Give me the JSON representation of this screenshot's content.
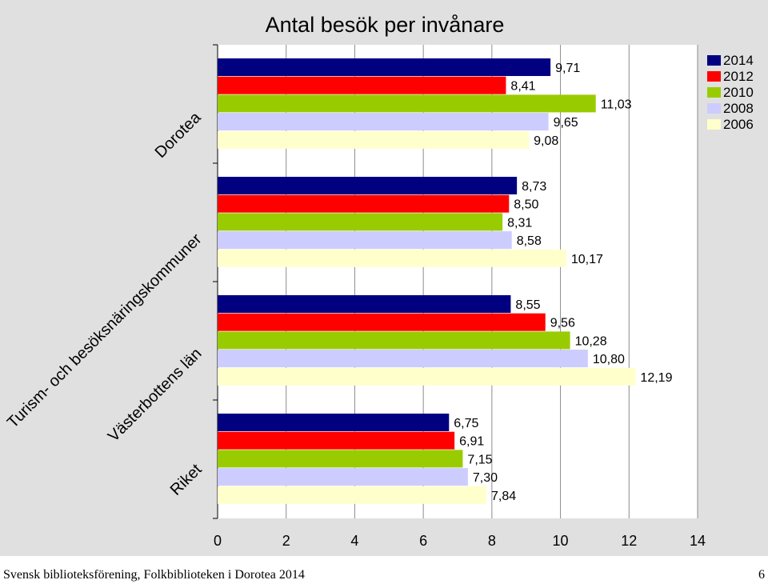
{
  "chart_data": {
    "type": "bar",
    "orientation": "horizontal",
    "title": "Antal besök per invånare",
    "categories": [
      "Dorotea",
      "Turism- och besöksnäringskommuner",
      "Västerbottens län",
      "Riket"
    ],
    "series": [
      {
        "name": "2014",
        "color": "#000080",
        "values": [
          9.71,
          8.73,
          8.55,
          6.75
        ]
      },
      {
        "name": "2012",
        "color": "#ff0000",
        "values": [
          8.41,
          8.5,
          9.56,
          6.91
        ]
      },
      {
        "name": "2010",
        "color": "#99cc00",
        "values": [
          11.03,
          8.31,
          10.28,
          7.15
        ]
      },
      {
        "name": "2008",
        "color": "#ccccff",
        "values": [
          9.65,
          8.58,
          10.8,
          7.3
        ]
      },
      {
        "name": "2006",
        "color": "#ffffcc",
        "values": [
          9.08,
          10.17,
          12.19,
          7.84
        ]
      }
    ],
    "data_labels": [
      [
        "9,71",
        "8,41",
        "11,03",
        "9,65",
        "9,08"
      ],
      [
        "8,73",
        "8,50",
        "8,31",
        "8,58",
        "10,17"
      ],
      [
        "8,55",
        "9,56",
        "10,28",
        "10,80",
        "12,19"
      ],
      [
        "6,75",
        "6,91",
        "7,15",
        "7,30",
        "7,84"
      ]
    ],
    "xlim": [
      0,
      14
    ],
    "xticks": [
      0,
      2,
      4,
      6,
      8,
      10,
      12,
      14
    ],
    "xtick_labels": [
      "0",
      "2",
      "4",
      "6",
      "8",
      "10",
      "12",
      "14"
    ],
    "grid": "vertical",
    "legend_position": "top-right",
    "plot_background": "#e0e0e0"
  },
  "footer": {
    "left": "Svensk biblioteksförening, Folkbiblioteken i Dorotea 2014",
    "right": "6"
  }
}
